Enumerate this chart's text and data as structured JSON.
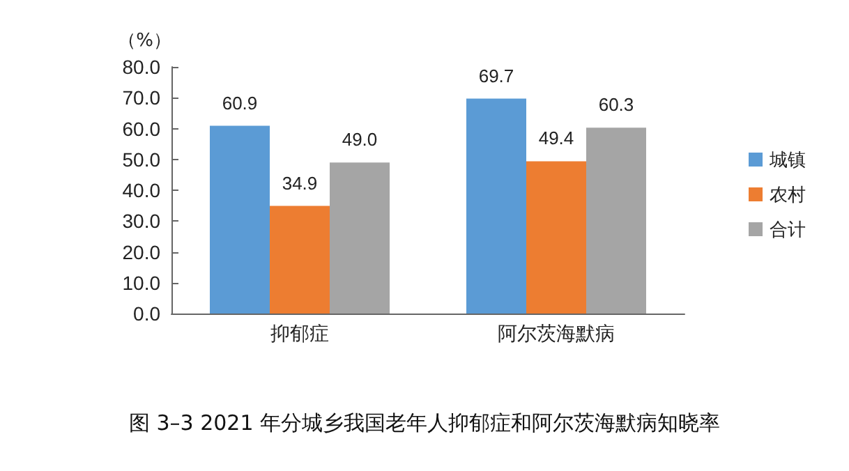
{
  "chart_data": {
    "type": "bar",
    "title": "图 3–3 2021 年分城乡我国老年人抑郁症和阿尔茨海默病知晓率",
    "ylabel": "（%）",
    "categories": [
      "抑郁症",
      "阿尔茨海默病"
    ],
    "series": [
      {
        "name": "城镇",
        "color": "#5b9bd5",
        "values": [
          60.9,
          69.7
        ]
      },
      {
        "name": "农村",
        "color": "#ed7d31",
        "values": [
          34.9,
          49.4
        ]
      },
      {
        "name": "合计",
        "color": "#a5a5a5",
        "values": [
          49.0,
          60.3
        ]
      }
    ],
    "value_labels": [
      [
        "60.9",
        "69.7"
      ],
      [
        "34.9",
        "49.4"
      ],
      [
        "49.0",
        "60.3"
      ]
    ],
    "ylim": [
      0,
      80
    ],
    "yticks": [
      {
        "value": 0,
        "label": "0.0"
      },
      {
        "value": 10,
        "label": "10.0"
      },
      {
        "value": 20,
        "label": "20.0"
      },
      {
        "value": 30,
        "label": "30.0"
      },
      {
        "value": 40,
        "label": "40.0"
      },
      {
        "value": 50,
        "label": "50.0"
      },
      {
        "value": 60,
        "label": "60.0"
      },
      {
        "value": 70,
        "label": "70.0"
      },
      {
        "value": 80,
        "label": "80.0"
      }
    ],
    "grid": false,
    "legend": "right"
  }
}
